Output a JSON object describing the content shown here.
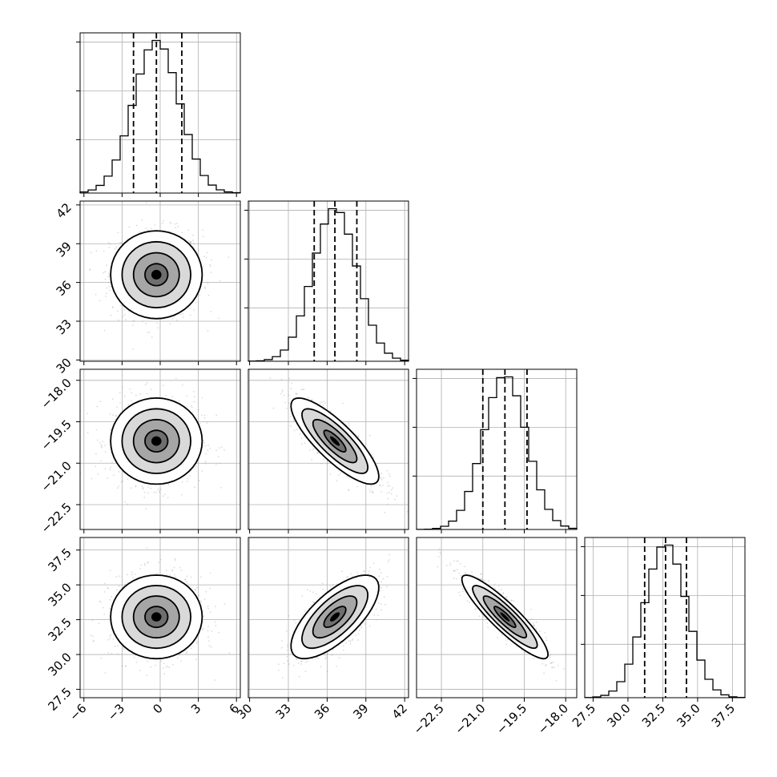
{
  "chart_data": {
    "type": "corner",
    "params": [
      {
        "ticks": [
          -6,
          -3,
          0,
          3,
          6
        ],
        "tick_labels": [
          "−6",
          "−3",
          "0",
          "3",
          "6"
        ],
        "range": [
          -6.3,
          6.3
        ],
        "median": -0.3,
        "q16": -2.1,
        "q84": 1.7,
        "std": 1.8
      },
      {
        "ticks": [
          30,
          33,
          36,
          39,
          42
        ],
        "tick_labels": [
          "30",
          "33",
          "36",
          "39",
          "42"
        ],
        "range": [
          29.9,
          42.3
        ],
        "median": 36.6,
        "q16": 35.0,
        "q84": 38.3,
        "std": 1.7
      },
      {
        "ticks": [
          -22.5,
          -21.0,
          -19.5,
          -18.0
        ],
        "tick_labels": [
          "−22.5",
          "−21.0",
          "−19.5",
          "−18.0"
        ],
        "range": [
          -23.4,
          -17.6
        ],
        "median": -20.2,
        "q16": -21.0,
        "q84": -19.4,
        "std": 0.78
      },
      {
        "ticks": [
          27.5,
          30.0,
          32.5,
          35.0,
          37.5
        ],
        "tick_labels": [
          "27.5",
          "30.0",
          "32.5",
          "35.0",
          "37.5"
        ],
        "range": [
          26.9,
          38.4
        ],
        "median": 32.7,
        "q16": 31.2,
        "q84": 34.2,
        "std": 1.5
      }
    ],
    "correlations": [
      [
        1,
        0,
        0,
        0
      ],
      [
        0,
        1,
        -0.82,
        0.7
      ],
      [
        0,
        -0.82,
        1,
        -0.9
      ],
      [
        0,
        0.7,
        -0.9,
        1
      ]
    ],
    "hist_bins": 20,
    "contour_levels_sigma": [
      0.5,
      1,
      1.5,
      2
    ],
    "grid": true
  }
}
